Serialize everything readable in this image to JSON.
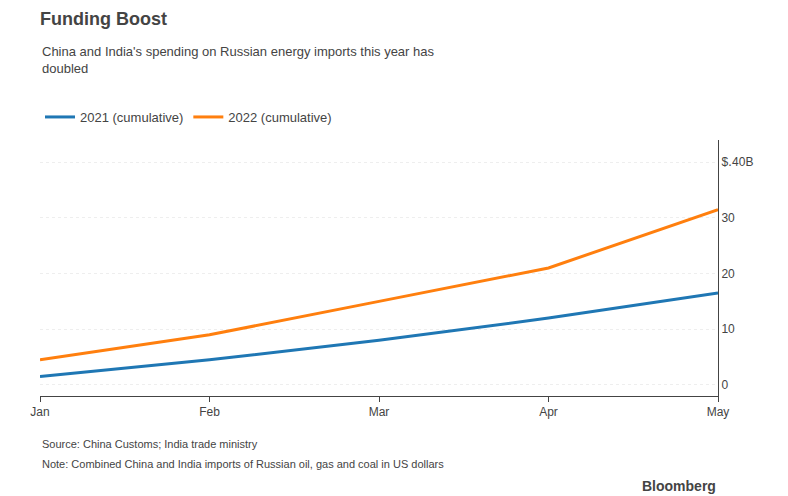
{
  "chart_data": {
    "type": "line",
    "title": "Funding Boost",
    "subtitle": "China and India's spending on Russian energy imports this year has\ndoubled",
    "categories": [
      "Jan",
      "Feb",
      "Mar",
      "Apr",
      "May"
    ],
    "series": [
      {
        "name": "2021 (cumulative)",
        "values": [
          1.5,
          4.5,
          8.0,
          12.0,
          16.5
        ]
      },
      {
        "name": "2022 (cumulative)",
        "values": [
          4.5,
          9.0,
          15.0,
          21.0,
          31.5
        ]
      }
    ],
    "ylim": [
      -2,
      44
    ],
    "yticks": [
      0,
      10,
      20,
      30,
      {
        "value": 40,
        "label": "$․40B"
      }
    ],
    "grid": true,
    "legend": "top left",
    "annotations": [
      "Source: China Customs; India trade ministry",
      "Note: Combined China and India imports of Russian oil, gas and coal in US dollars",
      "Bloomberg"
    ]
  }
}
